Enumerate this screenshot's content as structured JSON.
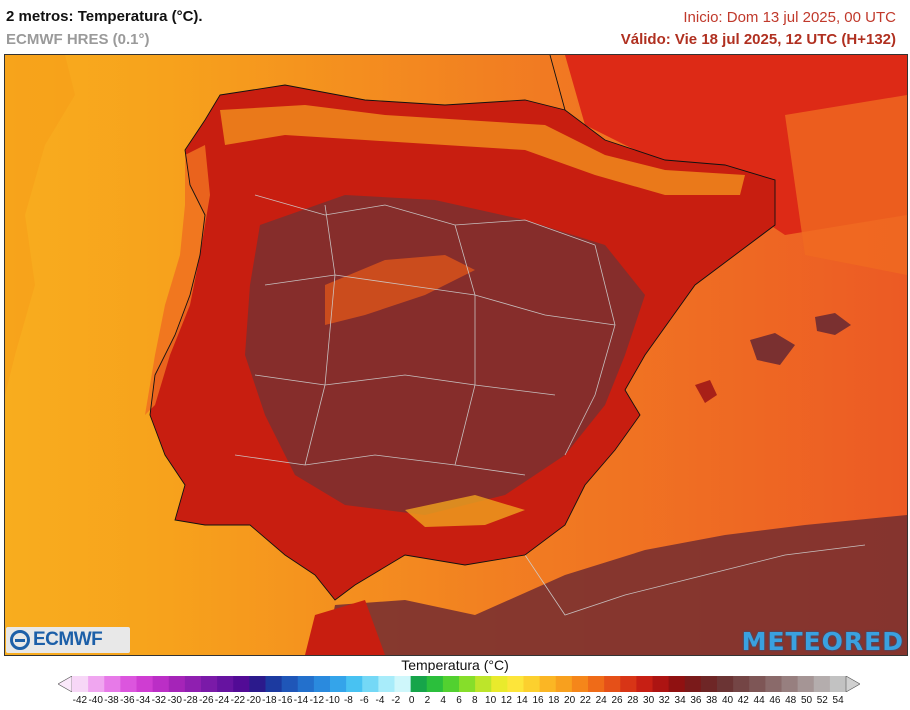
{
  "header": {
    "title": "2 metros: Temperatura (°C).",
    "model": "ECMWF HRES (0.1°)",
    "run": "Inicio: Dom 13 jul 2025, 00 UTC",
    "valid": "Válido: Vie 18 jul 2025, 12 UTC (H+132)"
  },
  "map": {
    "region": "Península Ibérica",
    "colors": {
      "sea_west": "#f6a21e",
      "sea_east": "#ee5423",
      "land_hot": "#c81e10",
      "land_very_hot": "#7a3030",
      "mountains": "#f08a1c"
    }
  },
  "logos": {
    "left": "ECMWF",
    "right": "METEORED"
  },
  "legend": {
    "title": "Temperatura (°C)",
    "ticks": [
      "-42",
      "-40",
      "-38",
      "-36",
      "-34",
      "-32",
      "-30",
      "-28",
      "-26",
      "-24",
      "-22",
      "-20",
      "-18",
      "-16",
      "-14",
      "-12",
      "-10",
      "-8",
      "-6",
      "-4",
      "-2",
      "0",
      "2",
      "4",
      "6",
      "8",
      "10",
      "12",
      "14",
      "16",
      "18",
      "20",
      "22",
      "24",
      "26",
      "28",
      "30",
      "32",
      "34",
      "36",
      "38",
      "40",
      "42",
      "44",
      "46",
      "48",
      "50",
      "52",
      "54"
    ],
    "colors": [
      "#f7d7f7",
      "#f0a6f0",
      "#e77ae8",
      "#dc55de",
      "#cf3dd2",
      "#bb2ec6",
      "#a524b8",
      "#8f1fb0",
      "#7a1aa8",
      "#6613a0",
      "#520b96",
      "#2b1a8c",
      "#1c3aa0",
      "#1f56b8",
      "#2370cc",
      "#2a8ade",
      "#34a4ea",
      "#48c2f2",
      "#74d8f6",
      "#a8ecfa",
      "#cff7fb",
      "#16a54a",
      "#2bbf3c",
      "#52d130",
      "#86de2a",
      "#bde52a",
      "#e9ea2c",
      "#fde53a",
      "#fcd02e",
      "#fbb624",
      "#f8a01e",
      "#f5861a",
      "#ef6b18",
      "#e55018",
      "#d83516",
      "#c71f14",
      "#ad1412",
      "#901111",
      "#7a1a1a",
      "#6e2626",
      "#6b3434",
      "#744545",
      "#7e5656",
      "#8a6a6a",
      "#977f7f",
      "#a59595",
      "#b4adad",
      "#c2c2c2"
    ]
  }
}
